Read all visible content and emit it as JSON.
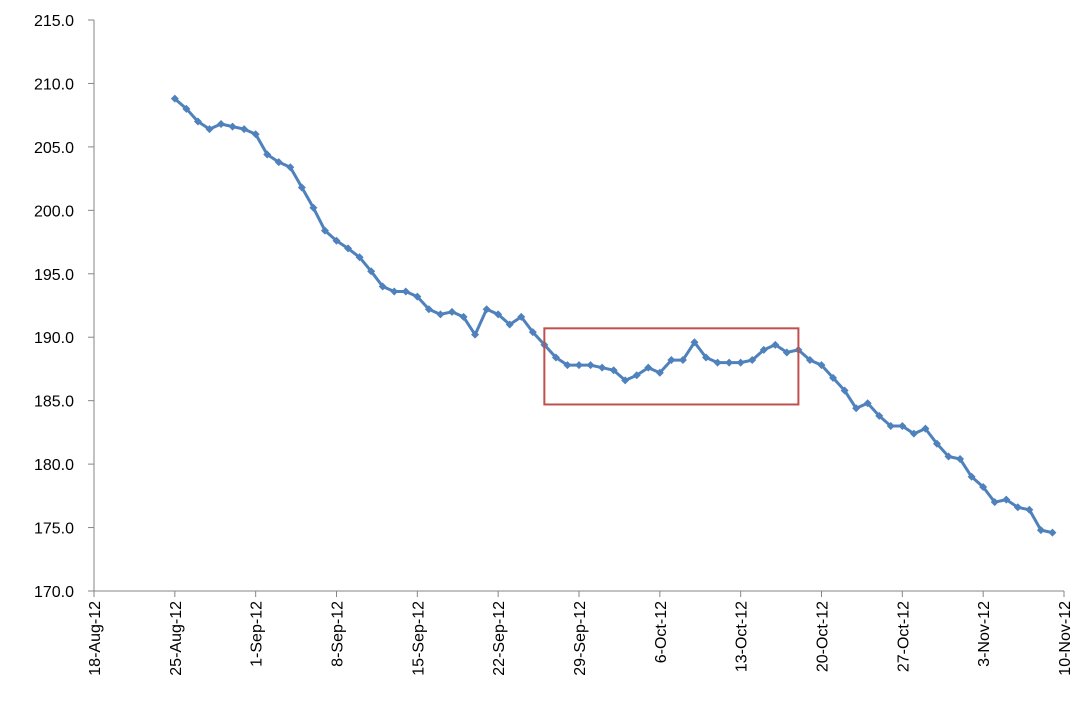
{
  "chart_data": {
    "type": "line",
    "title": "",
    "xlabel": "",
    "ylabel": "",
    "x_tick_labels": [
      "18-Aug-12",
      "25-Aug-12",
      "1-Sep-12",
      "8-Sep-12",
      "15-Sep-12",
      "22-Sep-12",
      "29-Sep-12",
      "6-Oct-12",
      "13-Oct-12",
      "20-Oct-12",
      "27-Oct-12",
      "3-Nov-12",
      "10-Nov-12"
    ],
    "x_range": [
      "2012-08-18",
      "2012-11-10"
    ],
    "y_tick_labels": [
      "170.0",
      "175.0",
      "180.0",
      "185.0",
      "190.0",
      "195.0",
      "200.0",
      "205.0",
      "210.0",
      "215.0"
    ],
    "ylim": [
      170,
      215
    ],
    "grid": false,
    "legend": "none",
    "line_color": "#4F81BD",
    "highlight_box": {
      "color": "#C0504D",
      "x_range": [
        "2012-09-26",
        "2012-10-18"
      ],
      "y_range": [
        184.7,
        190.7
      ]
    },
    "series": [
      {
        "x": [
          "2012-08-25",
          "2012-08-26",
          "2012-08-27",
          "2012-08-28",
          "2012-08-29",
          "2012-08-30",
          "2012-08-31",
          "2012-09-01",
          "2012-09-02",
          "2012-09-03",
          "2012-09-04",
          "2012-09-05",
          "2012-09-06",
          "2012-09-07",
          "2012-09-08",
          "2012-09-09",
          "2012-09-10",
          "2012-09-11",
          "2012-09-12",
          "2012-09-13",
          "2012-09-14",
          "2012-09-15",
          "2012-09-16",
          "2012-09-17",
          "2012-09-18",
          "2012-09-19",
          "2012-09-20",
          "2012-09-21",
          "2012-09-22",
          "2012-09-23",
          "2012-09-24",
          "2012-09-25",
          "2012-09-26",
          "2012-09-27",
          "2012-09-28",
          "2012-09-29",
          "2012-09-30",
          "2012-10-01",
          "2012-10-02",
          "2012-10-03",
          "2012-10-04",
          "2012-10-05",
          "2012-10-06",
          "2012-10-07",
          "2012-10-08",
          "2012-10-09",
          "2012-10-10",
          "2012-10-11",
          "2012-10-12",
          "2012-10-13",
          "2012-10-14",
          "2012-10-15",
          "2012-10-16",
          "2012-10-17",
          "2012-10-18",
          "2012-10-19",
          "2012-10-20",
          "2012-10-21",
          "2012-10-22",
          "2012-10-23",
          "2012-10-24",
          "2012-10-25",
          "2012-10-26",
          "2012-10-27",
          "2012-10-28",
          "2012-10-29",
          "2012-10-30",
          "2012-10-31",
          "2012-11-01",
          "2012-11-02",
          "2012-11-03",
          "2012-11-04",
          "2012-11-05",
          "2012-11-06",
          "2012-11-07",
          "2012-11-08",
          "2012-11-09"
        ],
        "values": [
          208.8,
          208.0,
          207.0,
          206.4,
          206.8,
          206.6,
          206.4,
          206.0,
          204.4,
          203.8,
          203.4,
          201.8,
          200.2,
          198.4,
          197.6,
          197.0,
          196.3,
          195.2,
          194.0,
          193.6,
          193.6,
          193.2,
          192.2,
          191.8,
          192.0,
          191.6,
          190.2,
          192.2,
          191.8,
          191.0,
          191.6,
          190.4,
          189.4,
          188.4,
          187.8,
          187.8,
          187.8,
          187.6,
          187.4,
          186.6,
          187.0,
          187.6,
          187.2,
          188.2,
          188.2,
          189.6,
          188.4,
          188.0,
          188.0,
          188.0,
          188.2,
          189.0,
          189.4,
          188.8,
          189.0,
          188.2,
          187.8,
          186.8,
          185.8,
          184.4,
          184.8,
          183.8,
          183.0,
          183.0,
          182.4,
          182.8,
          181.6,
          180.6,
          180.4,
          179.0,
          178.2,
          177.0,
          177.2,
          176.6,
          176.4,
          174.8,
          174.6
        ]
      }
    ]
  }
}
